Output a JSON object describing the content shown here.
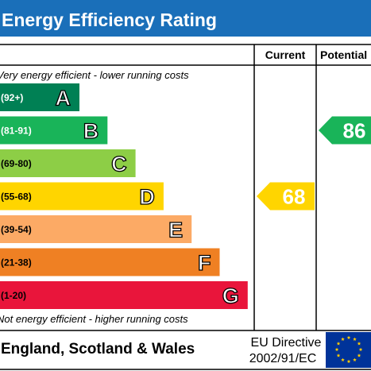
{
  "title": "Energy Efficiency Rating",
  "chart_data": {
    "type": "bar",
    "columns": [
      "Current",
      "Potential"
    ],
    "top_note": "Very energy efficient - lower running costs",
    "bottom_note": "Not energy efficient - higher running costs",
    "bands": [
      {
        "letter": "A",
        "range": "(92+)",
        "color": "#008054",
        "text_color": "#ffffff"
      },
      {
        "letter": "B",
        "range": "(81-91)",
        "color": "#19b459",
        "text_color": "#ffffff"
      },
      {
        "letter": "C",
        "range": "(69-80)",
        "color": "#8dce46",
        "text_color": "#000000"
      },
      {
        "letter": "D",
        "range": "(55-68)",
        "color": "#ffd500",
        "text_color": "#000000"
      },
      {
        "letter": "E",
        "range": "(39-54)",
        "color": "#fcaa65",
        "text_color": "#000000"
      },
      {
        "letter": "F",
        "range": "(21-38)",
        "color": "#ef8023",
        "text_color": "#000000"
      },
      {
        "letter": "G",
        "range": "(1-20)",
        "color": "#e9153b",
        "text_color": "#000000"
      }
    ],
    "current": {
      "value": 68,
      "band": "D",
      "color": "#ffd500"
    },
    "potential": {
      "value": 86,
      "band": "B",
      "color": "#19b459"
    }
  },
  "footer": {
    "region": "England, Scotland & Wales",
    "directive_line1": "EU Directive",
    "directive_line2": "2002/91/EC"
  },
  "colors": {
    "title_bg": "#1a6fb9",
    "eu_flag_bg": "#003399",
    "eu_star": "#ffcc00"
  }
}
